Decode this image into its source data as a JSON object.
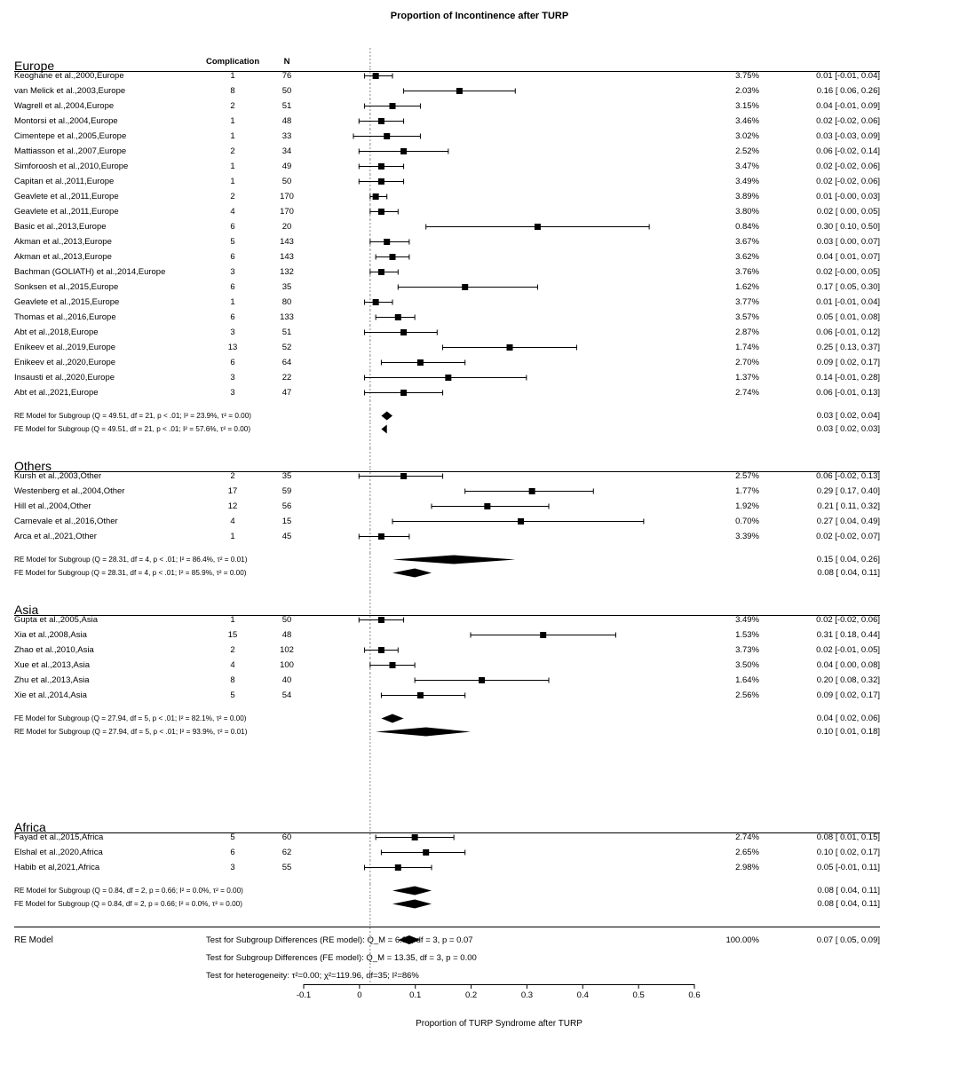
{
  "title": "Proportion of Incontinence after TURP",
  "columns": {
    "complication": "Complication",
    "n": "N"
  },
  "axis": {
    "min": -0.1,
    "max": 0.6,
    "ticks": [
      -0.1,
      0,
      0.1,
      0.2,
      0.3,
      0.4,
      0.5,
      0.6
    ],
    "label": "Proportion of TURP Syndrome after TURP",
    "zero_line_dash": "2,2"
  },
  "style": {
    "marker_fill": "#000",
    "ci_line": "#000",
    "diamond_fill": "#000"
  },
  "groups": [
    {
      "name": "Europe",
      "studies": [
        {
          "label": "Keoghane et al.,2000,Europe",
          "comp": 1,
          "n": 76,
          "est": 0.01,
          "lo": -0.01,
          "hi": 0.04,
          "wt": "3.75%",
          "ci": "0.01 [-0.01, 0.04]"
        },
        {
          "label": "van Melick et al.,2003,Europe",
          "comp": 8,
          "n": 50,
          "est": 0.16,
          "lo": 0.06,
          "hi": 0.26,
          "wt": "2.03%",
          "ci": "0.16 [ 0.06, 0.26]"
        },
        {
          "label": "Wagrell et al.,2004,Europe",
          "comp": 2,
          "n": 51,
          "est": 0.04,
          "lo": -0.01,
          "hi": 0.09,
          "wt": "3.15%",
          "ci": "0.04 [-0.01, 0.09]"
        },
        {
          "label": "Montorsi et al.,2004,Europe",
          "comp": 1,
          "n": 48,
          "est": 0.02,
          "lo": -0.02,
          "hi": 0.06,
          "wt": "3.46%",
          "ci": "0.02 [-0.02, 0.06]"
        },
        {
          "label": "Cimentepe et al.,2005,Europe",
          "comp": 1,
          "n": 33,
          "est": 0.03,
          "lo": -0.03,
          "hi": 0.09,
          "wt": "3.02%",
          "ci": "0.03 [-0.03, 0.09]"
        },
        {
          "label": "Mattiasson et al.,2007,Europe",
          "comp": 2,
          "n": 34,
          "est": 0.06,
          "lo": -0.02,
          "hi": 0.14,
          "wt": "2.52%",
          "ci": "0.06 [-0.02, 0.14]"
        },
        {
          "label": "Simforoosh et al.,2010,Europe",
          "comp": 1,
          "n": 49,
          "est": 0.02,
          "lo": -0.02,
          "hi": 0.06,
          "wt": "3.47%",
          "ci": "0.02 [-0.02, 0.06]"
        },
        {
          "label": "Capitan et al.,2011,Europe",
          "comp": 1,
          "n": 50,
          "est": 0.02,
          "lo": -0.02,
          "hi": 0.06,
          "wt": "3.49%",
          "ci": "0.02 [-0.02, 0.06]"
        },
        {
          "label": "Geavlete et al.,2011,Europe",
          "comp": 2,
          "n": 170,
          "est": 0.01,
          "lo": -0.0,
          "hi": 0.03,
          "wt": "3.89%",
          "ci": "0.01 [-0.00, 0.03]"
        },
        {
          "label": "Geavlete et al.,2011,Europe",
          "comp": 4,
          "n": 170,
          "est": 0.02,
          "lo": 0.0,
          "hi": 0.05,
          "wt": "3.80%",
          "ci": "0.02 [ 0.00, 0.05]"
        },
        {
          "label": "Basic et al.,2013,Europe",
          "comp": 6,
          "n": 20,
          "est": 0.3,
          "lo": 0.1,
          "hi": 0.5,
          "wt": "0.84%",
          "ci": "0.30 [ 0.10, 0.50]"
        },
        {
          "label": "Akman et al.,2013,Europe",
          "comp": 5,
          "n": 143,
          "est": 0.03,
          "lo": 0.0,
          "hi": 0.07,
          "wt": "3.67%",
          "ci": "0.03 [ 0.00, 0.07]"
        },
        {
          "label": "Akman et al.,2013,Europe",
          "comp": 6,
          "n": 143,
          "est": 0.04,
          "lo": 0.01,
          "hi": 0.07,
          "wt": "3.62%",
          "ci": "0.04 [ 0.01, 0.07]"
        },
        {
          "label": "Bachman (GOLIATH) et al.,2014,Europe",
          "comp": 3,
          "n": 132,
          "est": 0.02,
          "lo": -0.0,
          "hi": 0.05,
          "wt": "3.76%",
          "ci": "0.02 [-0.00, 0.05]"
        },
        {
          "label": "Sonksen et al.,2015,Europe",
          "comp": 6,
          "n": 35,
          "est": 0.17,
          "lo": 0.05,
          "hi": 0.3,
          "wt": "1.62%",
          "ci": "0.17 [ 0.05, 0.30]"
        },
        {
          "label": "Geavlete et al.,2015,Europe",
          "comp": 1,
          "n": 80,
          "est": 0.01,
          "lo": -0.01,
          "hi": 0.04,
          "wt": "3.77%",
          "ci": "0.01 [-0.01, 0.04]"
        },
        {
          "label": "Thomas et al.,2016,Europe",
          "comp": 6,
          "n": 133,
          "est": 0.05,
          "lo": 0.01,
          "hi": 0.08,
          "wt": "3.57%",
          "ci": "0.05 [ 0.01, 0.08]"
        },
        {
          "label": "Abt et al.,2018,Europe",
          "comp": 3,
          "n": 51,
          "est": 0.06,
          "lo": -0.01,
          "hi": 0.12,
          "wt": "2.87%",
          "ci": "0.06 [-0.01, 0.12]"
        },
        {
          "label": "Enikeev et al.,2019,Europe",
          "comp": 13,
          "n": 52,
          "est": 0.25,
          "lo": 0.13,
          "hi": 0.37,
          "wt": "1.74%",
          "ci": "0.25 [ 0.13, 0.37]"
        },
        {
          "label": "Enikeev et al.,2020,Europe",
          "comp": 6,
          "n": 64,
          "est": 0.09,
          "lo": 0.02,
          "hi": 0.17,
          "wt": "2.70%",
          "ci": "0.09 [ 0.02, 0.17]"
        },
        {
          "label": "Insausti et al.,2020,Europe",
          "comp": 3,
          "n": 22,
          "est": 0.14,
          "lo": -0.01,
          "hi": 0.28,
          "wt": "1.37%",
          "ci": "0.14 [-0.01, 0.28]"
        },
        {
          "label": "Abt et al.,2021,Europe",
          "comp": 3,
          "n": 47,
          "est": 0.06,
          "lo": -0.01,
          "hi": 0.13,
          "wt": "2.74%",
          "ci": "0.06 [-0.01, 0.13]"
        }
      ],
      "models": [
        {
          "note": "RE Model for Subgroup (Q = 49.51, df = 21, p < .01; I² = 23.9%, τ² = 0.00)",
          "est": 0.03,
          "lo": 0.02,
          "hi": 0.04,
          "ci": "0.03 [ 0.02, 0.04]"
        },
        {
          "note": "FE Model for Subgroup (Q = 49.51, df = 21, p < .01; I² = 57.6%, τ² = 0.00)",
          "est": 0.03,
          "lo": 0.02,
          "hi": 0.03,
          "ci": "0.03 [ 0.02, 0.03]"
        }
      ]
    },
    {
      "name": "Others",
      "studies": [
        {
          "label": "Kursh et al.,2003,Other",
          "comp": 2,
          "n": 35,
          "est": 0.06,
          "lo": -0.02,
          "hi": 0.13,
          "wt": "2.57%",
          "ci": "0.06 [-0.02, 0.13]"
        },
        {
          "label": "Westenberg et al.,2004,Other",
          "comp": 17,
          "n": 59,
          "est": 0.29,
          "lo": 0.17,
          "hi": 0.4,
          "wt": "1.77%",
          "ci": "0.29 [ 0.17, 0.40]"
        },
        {
          "label": "Hill et al.,2004,Other",
          "comp": 12,
          "n": 56,
          "est": 0.21,
          "lo": 0.11,
          "hi": 0.32,
          "wt": "1.92%",
          "ci": "0.21 [ 0.11, 0.32]"
        },
        {
          "label": "Carnevale et al.,2016,Other",
          "comp": 4,
          "n": 15,
          "est": 0.27,
          "lo": 0.04,
          "hi": 0.49,
          "wt": "0.70%",
          "ci": "0.27 [ 0.04, 0.49]"
        },
        {
          "label": "Arca et al.,2021,Other",
          "comp": 1,
          "n": 45,
          "est": 0.02,
          "lo": -0.02,
          "hi": 0.07,
          "wt": "3.39%",
          "ci": "0.02 [-0.02, 0.07]"
        }
      ],
      "models": [
        {
          "note": "RE Model for Subgroup (Q = 28.31, df = 4, p < .01; I² = 86.4%, τ² = 0.01)",
          "est": 0.15,
          "lo": 0.04,
          "hi": 0.26,
          "ci": "0.15 [ 0.04, 0.26]"
        },
        {
          "note": "FE Model for Subgroup (Q = 28.31, df = 4, p < .01; I² = 85.9%, τ² = 0.00)",
          "est": 0.08,
          "lo": 0.04,
          "hi": 0.11,
          "ci": "0.08 [ 0.04, 0.11]"
        }
      ]
    },
    {
      "name": "Asia",
      "studies": [
        {
          "label": "Gupta et al.,2005,Asia",
          "comp": 1,
          "n": 50,
          "est": 0.02,
          "lo": -0.02,
          "hi": 0.06,
          "wt": "3.49%",
          "ci": "0.02 [-0.02, 0.06]"
        },
        {
          "label": "Xia et al.,2008,Asia",
          "comp": 15,
          "n": 48,
          "est": 0.31,
          "lo": 0.18,
          "hi": 0.44,
          "wt": "1.53%",
          "ci": "0.31 [ 0.18, 0.44]"
        },
        {
          "label": "Zhao et al.,2010,Asia",
          "comp": 2,
          "n": 102,
          "est": 0.02,
          "lo": -0.01,
          "hi": 0.05,
          "wt": "3.73%",
          "ci": "0.02 [-0.01, 0.05]"
        },
        {
          "label": "Xue et al.,2013,Asia",
          "comp": 4,
          "n": 100,
          "est": 0.04,
          "lo": 0.0,
          "hi": 0.08,
          "wt": "3.50%",
          "ci": "0.04 [ 0.00, 0.08]"
        },
        {
          "label": "Zhu et al.,2013,Asia",
          "comp": 8,
          "n": 40,
          "est": 0.2,
          "lo": 0.08,
          "hi": 0.32,
          "wt": "1.64%",
          "ci": "0.20 [ 0.08, 0.32]"
        },
        {
          "label": "Xie et al.,2014,Asia",
          "comp": 5,
          "n": 54,
          "est": 0.09,
          "lo": 0.02,
          "hi": 0.17,
          "wt": "2.56%",
          "ci": "0.09 [ 0.02, 0.17]"
        }
      ],
      "models": [
        {
          "note": "FE Model for Subgroup (Q = 27.94, df = 5, p < .01; I² = 82.1%, τ² = 0.00)",
          "est": 0.04,
          "lo": 0.02,
          "hi": 0.06,
          "ci": "0.04 [ 0.02, 0.06]"
        },
        {
          "note": "RE Model for Subgroup (Q = 27.94, df = 5, p < .01; I² = 93.9%, τ² = 0.01)",
          "est": 0.1,
          "lo": 0.01,
          "hi": 0.18,
          "ci": "0.10 [ 0.01, 0.18]"
        }
      ],
      "post_gap": 80
    },
    {
      "name": "Africa",
      "studies": [
        {
          "label": "Fayad et al.,2015,Africa",
          "comp": 5,
          "n": 60,
          "est": 0.08,
          "lo": 0.01,
          "hi": 0.15,
          "wt": "2.74%",
          "ci": "0.08 [ 0.01, 0.15]"
        },
        {
          "label": "Elshal et al.,2020,Africa",
          "comp": 6,
          "n": 62,
          "est": 0.1,
          "lo": 0.02,
          "hi": 0.17,
          "wt": "2.65%",
          "ci": "0.10 [ 0.02, 0.17]"
        },
        {
          "label": "Habib et al,2021,Africa",
          "comp": 3,
          "n": 55,
          "est": 0.05,
          "lo": -0.01,
          "hi": 0.11,
          "wt": "2.98%",
          "ci": "0.05 [-0.01, 0.11]"
        }
      ],
      "models": [
        {
          "note": "RE Model for Subgroup (Q = 0.84, df = 2, p = 0.66; I² = 0.0%, τ² = 0.00)",
          "est": 0.08,
          "lo": 0.04,
          "hi": 0.11,
          "ci": "0.08 [ 0.04, 0.11]"
        },
        {
          "note": "FE Model for Subgroup (Q = 0.84, df = 2, p = 0.66; I² = 0.0%, τ² = 0.00)",
          "est": 0.08,
          "lo": 0.04,
          "hi": 0.11,
          "ci": "0.08 [ 0.04, 0.11]"
        }
      ]
    }
  ],
  "overall": {
    "label": "RE Model",
    "tests": [
      "Test for Subgroup Differences (RE model): Q_M = 6.97, df = 3, p = 0.07",
      "Test for Subgroup Differences (FE model): Q_M = 13.35, df = 3, p = 0.00",
      "Test for heterogeneity:  τ²=0.00;  χ²=119.96,  df=35; I²=86%"
    ],
    "est": 0.07,
    "lo": 0.05,
    "hi": 0.09,
    "wt": "100.00%",
    "ci": "0.07 [ 0.05, 0.09]"
  }
}
